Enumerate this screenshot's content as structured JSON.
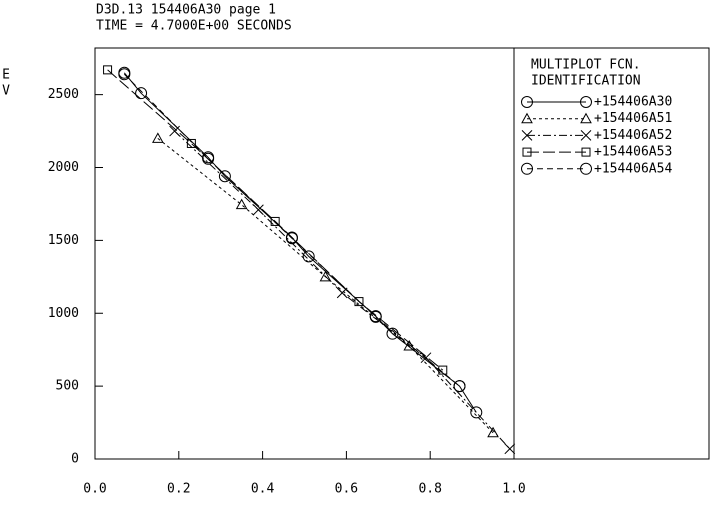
{
  "chart_data": {
    "type": "line",
    "title": "D3D.13 154406A30 page 1",
    "subtitle": "TIME = 4.7000E+00 SECONDS",
    "y_label": "EV",
    "legend_title": [
      "MULTIPLOT FCN.",
      "IDENTIFICATION"
    ],
    "xlim": [
      0,
      1
    ],
    "ylim": [
      0,
      2820
    ],
    "xticks": [
      {
        "value": 0,
        "label": "0.0"
      },
      0.2,
      0.4,
      0.6,
      0.8,
      {
        "value": 1,
        "label": "1.0"
      }
    ],
    "yticks": [
      0,
      500,
      1000,
      1500,
      2000,
      2500
    ],
    "legend": "right",
    "series": [
      {
        "name": "+154406A30",
        "color": "#000000",
        "marker": "circle",
        "dash": "none",
        "x": [
          0.07,
          0.11,
          0.27,
          0.31,
          0.47,
          0.51,
          0.67,
          0.71,
          0.87,
          0.91
        ],
        "values": [
          2650,
          2510,
          2070,
          1940,
          1520,
          1390,
          980,
          860,
          500,
          320
        ]
      },
      {
        "name": "+154406A51",
        "color": "#000000",
        "marker": "triangle",
        "dash": "3,3",
        "x": [
          0.15,
          0.35,
          0.55,
          0.75,
          0.95
        ],
        "values": [
          2200,
          1745,
          1250,
          775,
          180
        ]
      },
      {
        "name": "+154406A52",
        "color": "#000000",
        "marker": "x",
        "dash": "8,3,2,3",
        "x": [
          0.19,
          0.39,
          0.59,
          0.79,
          0.99
        ],
        "values": [
          2250,
          1710,
          1140,
          695,
          70
        ]
      },
      {
        "name": "+154406A53",
        "color": "#000000",
        "marker": "square",
        "dash": "12,4",
        "x": [
          0.03,
          0.23,
          0.43,
          0.63,
          0.83
        ],
        "values": [
          2670,
          2165,
          1630,
          1080,
          610
        ]
      },
      {
        "name": "+154406A54",
        "color": "#000000",
        "marker": "circle",
        "dash": "6,4",
        "x": [
          0.07,
          0.27,
          0.47,
          0.67,
          0.87
        ],
        "values": [
          2640,
          2060,
          1515,
          975,
          500
        ]
      }
    ]
  }
}
